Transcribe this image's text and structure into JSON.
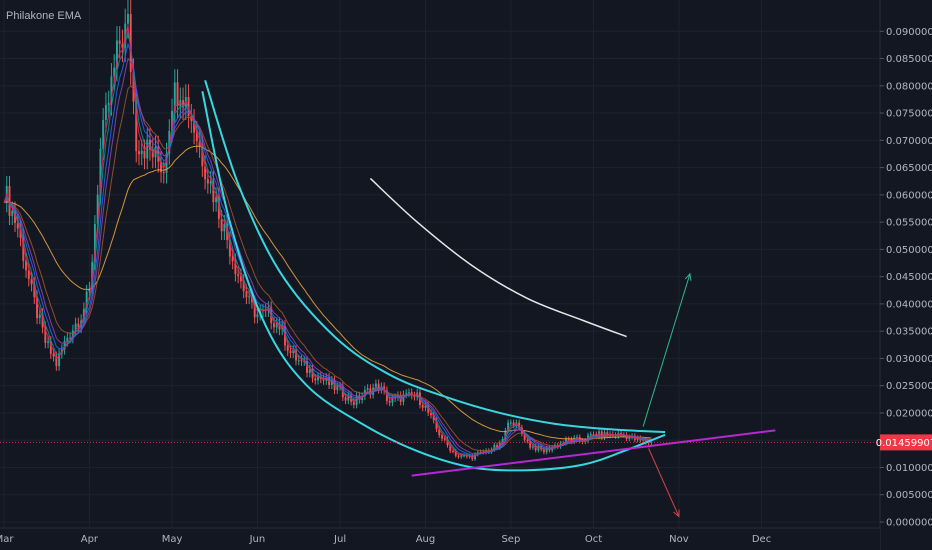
{
  "legend": {
    "title": "Philakone EMA"
  },
  "current_price": {
    "label": "0.01459907",
    "value": 0.01459907,
    "color": "#f23645"
  },
  "colors": {
    "background": "#131722",
    "up": "#26a69a",
    "down": "#ef5350",
    "ema_orange": "#e8a33d",
    "ema_brown": "#a0522d",
    "ema_purple": "#8e44ad",
    "ema_blue": "#2962ff",
    "ema_teal": "#009688",
    "ema_pink": "#e91e63",
    "curve_cyan": "#3ad6e0",
    "trend_magenta": "#b827d6",
    "projection_white": "#e6e6e6",
    "arrow_green": "#2eb88a",
    "arrow_red": "#d9414a"
  },
  "chart_data": {
    "type": "candlestick",
    "title": "Philakone EMA",
    "y_axis": {
      "position": "right",
      "min": 0,
      "max": 0.095,
      "ticks": [
        "0.09000000",
        "0.08500000",
        "0.08000000",
        "0.07500000",
        "0.07000000",
        "0.06500000",
        "0.06000000",
        "0.05500000",
        "0.05000000",
        "0.04500000",
        "0.04000000",
        "0.03500000",
        "0.03000000",
        "0.02500000",
        "0.02000000",
        "0.01500000",
        "0.01000000",
        "0.00500000",
        "0.00000000"
      ],
      "tick_values": [
        0.09,
        0.085,
        0.08,
        0.075,
        0.07,
        0.065,
        0.06,
        0.055,
        0.05,
        0.045,
        0.04,
        0.035,
        0.03,
        0.025,
        0.02,
        0.015,
        0.01,
        0.005,
        0.0
      ]
    },
    "x_axis": {
      "months": [
        "Mar",
        "Apr",
        "May",
        "Jun",
        "Jul",
        "Aug",
        "Sep",
        "Oct",
        "Nov",
        "Dec"
      ],
      "month_day_index": [
        0,
        31,
        61,
        92,
        122,
        153,
        184,
        214,
        245,
        275
      ],
      "last_candle_day": 235,
      "day_range": [
        0,
        318
      ]
    },
    "price_path": [
      [
        0,
        0.061
      ],
      [
        5,
        0.054
      ],
      [
        10,
        0.042
      ],
      [
        15,
        0.033
      ],
      [
        19,
        0.029
      ],
      [
        23,
        0.034
      ],
      [
        28,
        0.038
      ],
      [
        31,
        0.042
      ],
      [
        35,
        0.068
      ],
      [
        39,
        0.08
      ],
      [
        42,
        0.088
      ],
      [
        45,
        0.091
      ],
      [
        48,
        0.07
      ],
      [
        53,
        0.068
      ],
      [
        58,
        0.065
      ],
      [
        61,
        0.078
      ],
      [
        64,
        0.08
      ],
      [
        67,
        0.076
      ],
      [
        72,
        0.067
      ],
      [
        78,
        0.057
      ],
      [
        84,
        0.047
      ],
      [
        89,
        0.04
      ],
      [
        92,
        0.038
      ],
      [
        96,
        0.038
      ],
      [
        100,
        0.036
      ],
      [
        104,
        0.031
      ],
      [
        110,
        0.028
      ],
      [
        116,
        0.026
      ],
      [
        122,
        0.024
      ],
      [
        127,
        0.022
      ],
      [
        132,
        0.024
      ],
      [
        136,
        0.025
      ],
      [
        140,
        0.022
      ],
      [
        145,
        0.023
      ],
      [
        150,
        0.023
      ],
      [
        153,
        0.021
      ],
      [
        157,
        0.017
      ],
      [
        161,
        0.014
      ],
      [
        165,
        0.012
      ],
      [
        170,
        0.012
      ],
      [
        175,
        0.013
      ],
      [
        180,
        0.014
      ],
      [
        184,
        0.019
      ],
      [
        187,
        0.017
      ],
      [
        191,
        0.014
      ],
      [
        196,
        0.013
      ],
      [
        200,
        0.014
      ],
      [
        205,
        0.015
      ],
      [
        210,
        0.015
      ],
      [
        214,
        0.016
      ],
      [
        220,
        0.016
      ],
      [
        225,
        0.016
      ],
      [
        230,
        0.015
      ],
      [
        235,
        0.0146
      ]
    ],
    "ema_series": [
      {
        "color_key": "ema_orange",
        "span": 40
      },
      {
        "color_key": "ema_brown",
        "span": 12
      },
      {
        "color_key": "ema_purple",
        "span": 8
      },
      {
        "color_key": "ema_blue",
        "span": 6
      },
      {
        "color_key": "ema_teal",
        "span": 4
      },
      {
        "color_key": "ema_pink",
        "span": 3
      }
    ],
    "annotations": {
      "lower_arc": [
        [
          72,
          0.079
        ],
        [
          82,
          0.055
        ],
        [
          95,
          0.036
        ],
        [
          110,
          0.025
        ],
        [
          130,
          0.018
        ],
        [
          150,
          0.013
        ],
        [
          170,
          0.01
        ],
        [
          190,
          0.0095
        ],
        [
          210,
          0.0105
        ],
        [
          225,
          0.013
        ],
        [
          240,
          0.016
        ]
      ],
      "upper_arc": [
        [
          73,
          0.081
        ],
        [
          85,
          0.062
        ],
        [
          100,
          0.046
        ],
        [
          120,
          0.034
        ],
        [
          140,
          0.027
        ],
        [
          160,
          0.023
        ],
        [
          180,
          0.02
        ],
        [
          200,
          0.018
        ],
        [
          220,
          0.017
        ],
        [
          240,
          0.0165
        ]
      ],
      "trendline": [
        [
          148,
          0.0085
        ],
        [
          280,
          0.0168
        ]
      ],
      "projection_curve": [
        [
          133,
          0.063
        ],
        [
          150,
          0.055
        ],
        [
          170,
          0.047
        ],
        [
          190,
          0.041
        ],
        [
          210,
          0.037
        ],
        [
          226,
          0.034
        ]
      ],
      "arrow_up": [
        [
          232,
          0.0175
        ],
        [
          249,
          0.0455
        ]
      ],
      "arrow_down": [
        [
          234,
          0.0135
        ],
        [
          245,
          0.001
        ]
      ]
    }
  }
}
